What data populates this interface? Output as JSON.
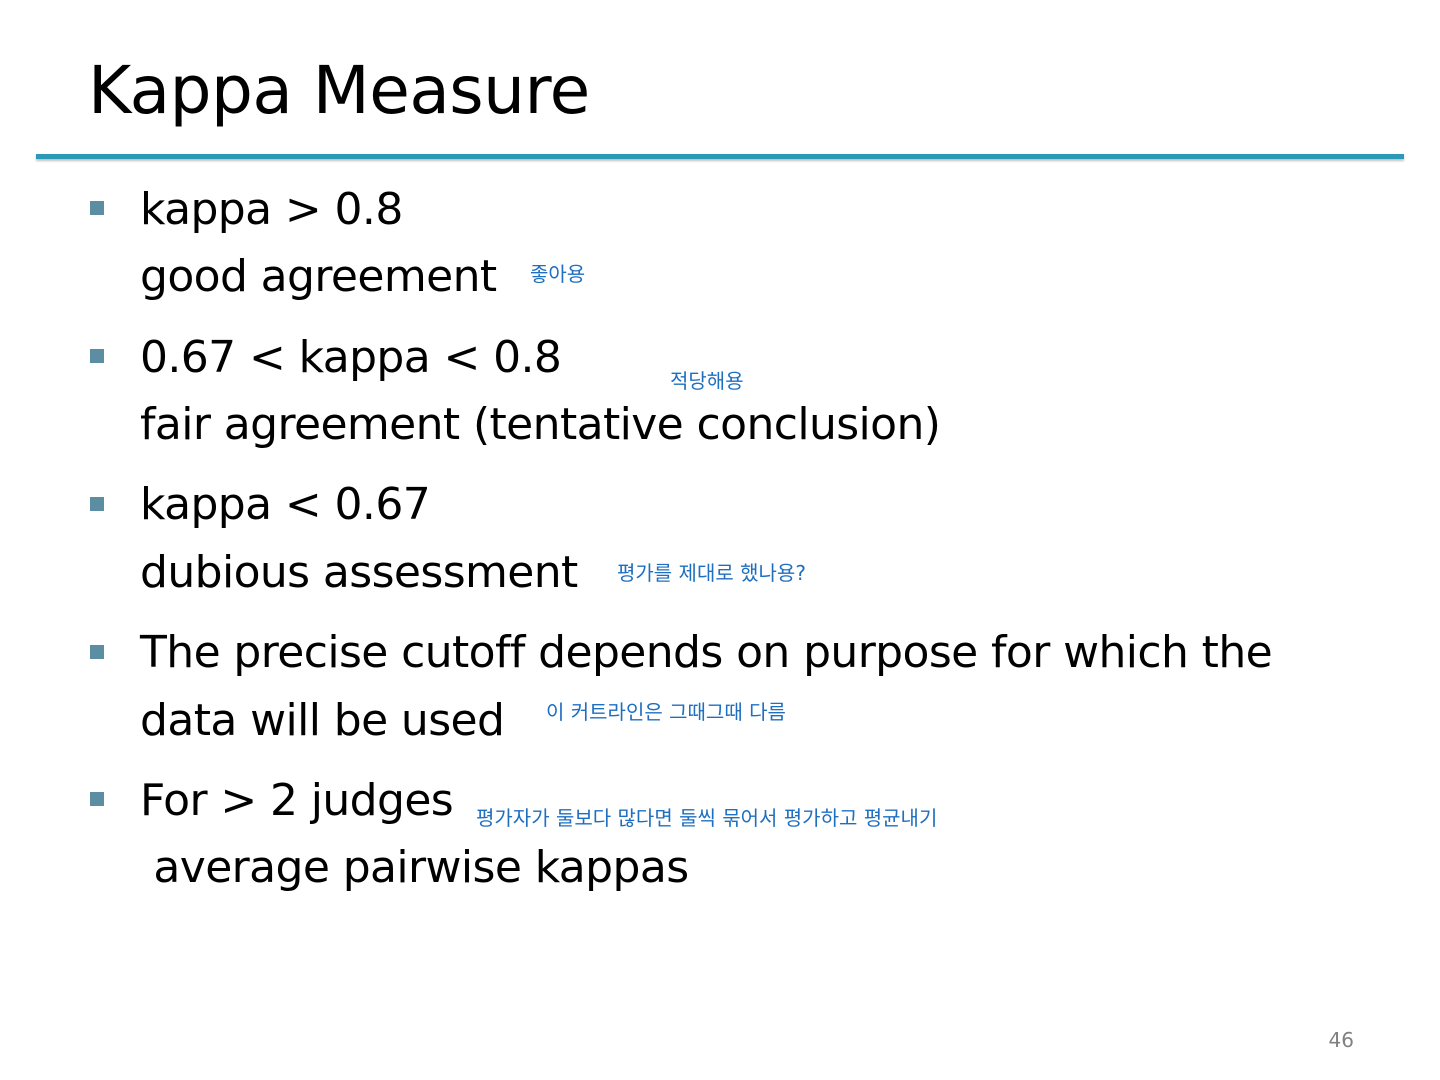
{
  "title": "Kappa Measure",
  "accent_color": "#2a9ab7",
  "bullet_color": "#5b8ea3",
  "note_color": "#1f6fc0",
  "bullets": [
    {
      "lines": [
        "kappa > 0.8",
        "good agreement"
      ],
      "note": "좋아용"
    },
    {
      "lines": [
        "0.67 < kappa < 0.8",
        "fair agreement (tentative conclusion)"
      ],
      "note": "적당해용"
    },
    {
      "lines": [
        "kappa < 0.67",
        "dubious assessment"
      ],
      "note": "평가를 제대로 했나용?"
    },
    {
      "lines": [
        "The precise cutoff depends on purpose for which the",
        "data will be used"
      ],
      "note": "이 커트라인은 그때그때 다름"
    },
    {
      "lines": [
        "For > 2 judges",
        " average pairwise kappas"
      ],
      "note": "평가자가 둘보다 많다면 둘씩 묶어서 평가하고 평균내기"
    }
  ],
  "page_number": "46"
}
